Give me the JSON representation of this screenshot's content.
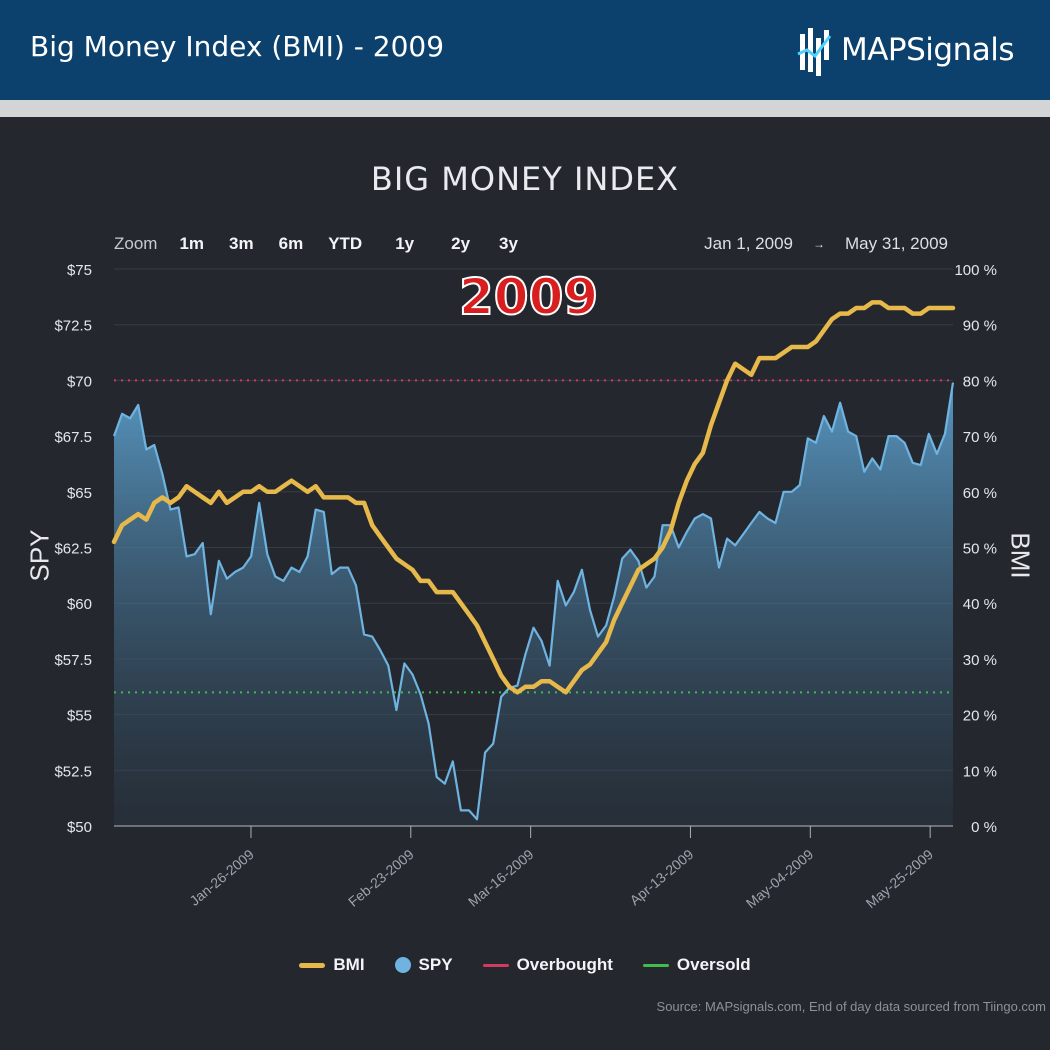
{
  "header": {
    "title": "Big Money Index (BMI) - 2009",
    "brand": "MAPSignals"
  },
  "zoom": {
    "label": "Zoom",
    "buttons": [
      "1m",
      "3m",
      "6m",
      "YTD",
      "1y",
      "2y",
      "3y"
    ]
  },
  "range": {
    "start": "Jan 1, 2009",
    "arrow": "→",
    "end": "May 31, 2009"
  },
  "stamp": "2009",
  "colors": {
    "bmi": "#e7b84a",
    "spy": "#6fb3e0",
    "overbought": "#d23a5e",
    "oversold": "#3fbf4a"
  },
  "chart_data": {
    "type": "line",
    "title": "BIG MONEY INDEX",
    "y_left_label": "SPY",
    "y_right_label": "BMI",
    "y_left_range": [
      50,
      75
    ],
    "y_right_range": [
      0,
      100
    ],
    "y_left_ticks": [
      "$75",
      "$72.5",
      "$70",
      "$67.5",
      "$65",
      "$62.5",
      "$60",
      "$57.5",
      "$55",
      "$52.5",
      "$50"
    ],
    "y_right_ticks": [
      "100 %",
      "90 %",
      "80 %",
      "70 %",
      "60 %",
      "50 %",
      "40 %",
      "30 %",
      "20 %",
      "10 %",
      "0 %"
    ],
    "x_ticks": [
      "Jan-26-2009",
      "Feb-23-2009",
      "Mar-16-2009",
      "Apr-13-2009",
      "May-04-2009",
      "May-25-2009"
    ],
    "x_start": "2009-01-02",
    "x_end": "2009-05-29",
    "grid": true,
    "thresholds": {
      "overbought": 80,
      "oversold": 24
    },
    "series": [
      {
        "name": "SPY",
        "axis": "left",
        "type": "area",
        "values": [
          67.5,
          68.5,
          68.3,
          68.9,
          66.9,
          67.1,
          65.8,
          64.2,
          64.3,
          62.1,
          62.2,
          62.7,
          59.5,
          61.9,
          61.1,
          61.4,
          61.6,
          62.1,
          64.5,
          62.2,
          61.2,
          61.0,
          61.6,
          61.4,
          62.1,
          64.2,
          64.1,
          61.3,
          61.6,
          61.6,
          60.8,
          58.6,
          58.5,
          57.9,
          57.2,
          55.2,
          57.3,
          56.8,
          55.9,
          54.6,
          52.2,
          51.9,
          52.9,
          50.7,
          50.7,
          50.3,
          53.3,
          53.7,
          55.8,
          56.2,
          56.3,
          57.7,
          58.9,
          58.3,
          57.2,
          61.0,
          59.9,
          60.5,
          61.5,
          59.7,
          58.5,
          59.0,
          60.3,
          62.0,
          62.4,
          61.9,
          60.7,
          61.2,
          63.5,
          63.5,
          62.5,
          63.2,
          63.8,
          64.0,
          63.8,
          61.6,
          62.9,
          62.6,
          63.1,
          63.6,
          64.1,
          63.8,
          63.6,
          65.0,
          65.0,
          65.3,
          67.4,
          67.2,
          68.4,
          67.7,
          69.0,
          67.7,
          67.5,
          65.9,
          66.5,
          66.0,
          67.5,
          67.5,
          67.2,
          66.3,
          66.2,
          67.6,
          66.7,
          67.6,
          69.9
        ]
      },
      {
        "name": "BMI",
        "axis": "right",
        "type": "line",
        "values": [
          51,
          54,
          55,
          56,
          55,
          58,
          59,
          58,
          59,
          61,
          60,
          59,
          58,
          60,
          58,
          59,
          60,
          60,
          61,
          60,
          60,
          61,
          62,
          61,
          60,
          61,
          59,
          59,
          59,
          59,
          58,
          58,
          54,
          52,
          50,
          48,
          47,
          46,
          44,
          44,
          42,
          42,
          42,
          40,
          38,
          36,
          33,
          30,
          27,
          25,
          24,
          25,
          25,
          26,
          26,
          25,
          24,
          26,
          28,
          29,
          31,
          33,
          37,
          40,
          43,
          46,
          47,
          48,
          50,
          53,
          58,
          62,
          65,
          67,
          72,
          76,
          80,
          83,
          82,
          81,
          84,
          84,
          84,
          85,
          86,
          86,
          86,
          87,
          89,
          91,
          92,
          92,
          93,
          93,
          94,
          94,
          93,
          93,
          93,
          92,
          92,
          93,
          93,
          93,
          93
        ]
      }
    ]
  },
  "legend": [
    {
      "name": "BMI",
      "kind": "line",
      "color_key": "bmi"
    },
    {
      "name": "SPY",
      "kind": "dot",
      "color_key": "spy"
    },
    {
      "name": "Overbought",
      "kind": "line",
      "color_key": "overbought"
    },
    {
      "name": "Oversold",
      "kind": "line",
      "color_key": "oversold"
    }
  ],
  "source": "Source: MAPsignals.com, End of day data sourced from Tiingo.com"
}
